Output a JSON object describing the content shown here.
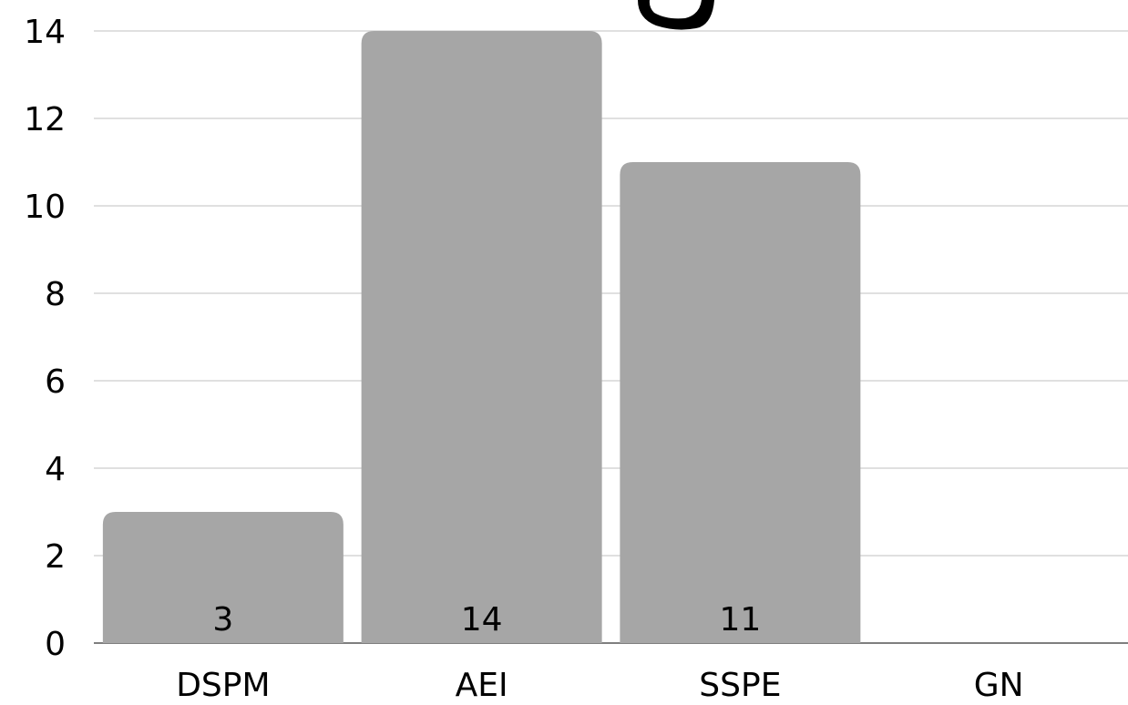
{
  "chart_data": {
    "type": "bar",
    "categories": [
      "DSPM",
      "AEI",
      "SSPE",
      "GN"
    ],
    "values": [
      3,
      14,
      11,
      0
    ],
    "data_labels": [
      "3",
      "14",
      "11",
      ""
    ],
    "y_ticks": [
      "0",
      "2",
      "4",
      "6",
      "8",
      "10",
      "12",
      "14"
    ],
    "ylim": [
      0,
      14
    ],
    "grid": true,
    "legend": "none",
    "bar_color": "#a6a6a6",
    "title": "",
    "xlabel": "",
    "ylabel": ""
  }
}
